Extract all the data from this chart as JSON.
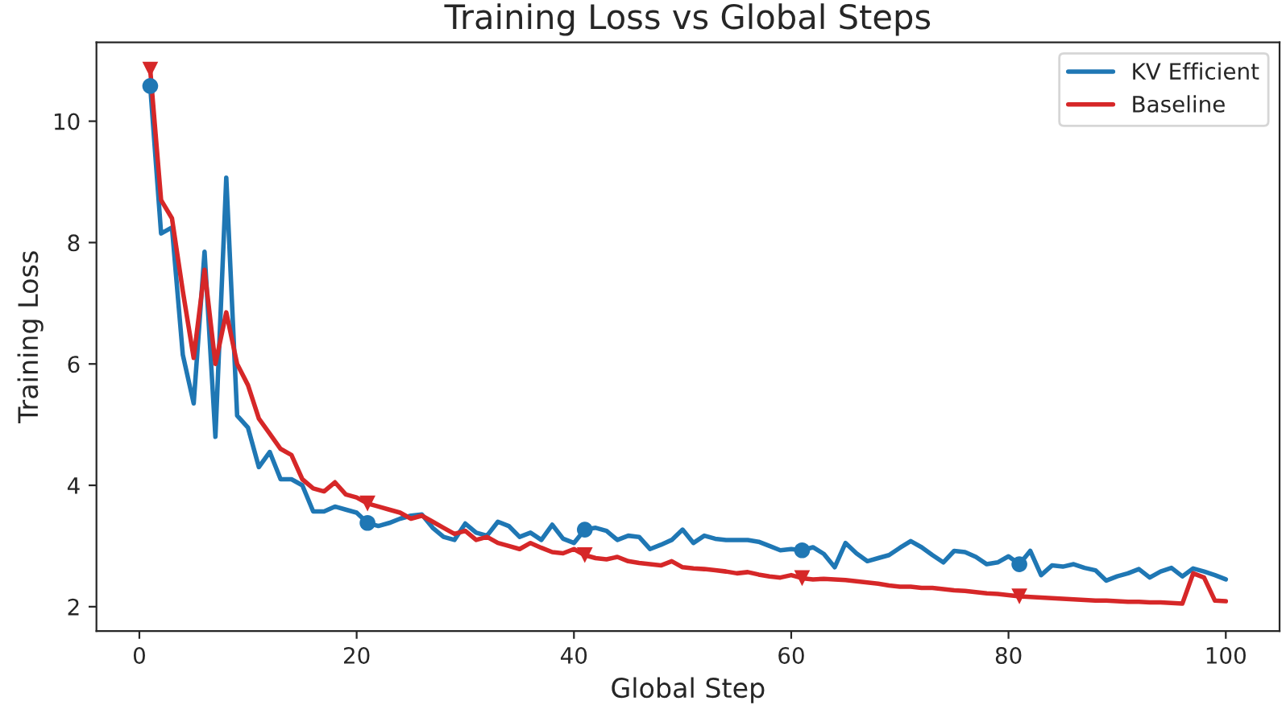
{
  "chart_data": {
    "type": "line",
    "title": "Training Loss vs Global Steps",
    "xlabel": "Global Step",
    "ylabel": "Training Loss",
    "x": [
      1,
      2,
      3,
      4,
      5,
      6,
      7,
      8,
      9,
      10,
      11,
      12,
      13,
      14,
      15,
      16,
      17,
      18,
      19,
      20,
      21,
      22,
      23,
      24,
      25,
      26,
      27,
      28,
      29,
      30,
      31,
      32,
      33,
      34,
      35,
      36,
      37,
      38,
      39,
      40,
      41,
      42,
      43,
      44,
      45,
      46,
      47,
      48,
      49,
      50,
      51,
      52,
      53,
      54,
      55,
      56,
      57,
      58,
      59,
      60,
      61,
      62,
      63,
      64,
      65,
      66,
      67,
      68,
      69,
      70,
      71,
      72,
      73,
      74,
      75,
      76,
      77,
      78,
      79,
      80,
      81,
      82,
      83,
      84,
      85,
      86,
      87,
      88,
      89,
      90,
      91,
      92,
      93,
      94,
      95,
      96,
      97,
      98,
      99,
      100
    ],
    "series": [
      {
        "name": "KV Efficient",
        "color": "#1f77b4",
        "values": [
          10.58,
          8.15,
          8.25,
          6.15,
          5.35,
          7.85,
          4.8,
          9.07,
          5.15,
          4.95,
          4.3,
          4.55,
          4.1,
          4.1,
          4.0,
          3.57,
          3.57,
          3.65,
          3.6,
          3.55,
          3.38,
          3.33,
          3.38,
          3.45,
          3.5,
          3.52,
          3.3,
          3.15,
          3.1,
          3.37,
          3.22,
          3.17,
          3.4,
          3.33,
          3.15,
          3.22,
          3.1,
          3.35,
          3.12,
          3.05,
          3.27,
          3.3,
          3.25,
          3.1,
          3.17,
          3.15,
          2.95,
          3.02,
          3.1,
          3.27,
          3.05,
          3.17,
          3.12,
          3.1,
          3.1,
          3.1,
          3.07,
          3.0,
          2.93,
          2.95,
          2.93,
          2.98,
          2.87,
          2.65,
          3.05,
          2.88,
          2.75,
          2.8,
          2.85,
          2.97,
          3.08,
          2.98,
          2.85,
          2.73,
          2.92,
          2.9,
          2.82,
          2.7,
          2.73,
          2.83,
          2.7,
          2.92,
          2.52,
          2.68,
          2.66,
          2.7,
          2.64,
          2.6,
          2.43,
          2.5,
          2.55,
          2.62,
          2.48,
          2.58,
          2.64,
          2.5,
          2.63,
          2.58,
          2.52,
          2.45
        ]
      },
      {
        "name": "Baseline",
        "color": "#d62728",
        "values": [
          10.85,
          8.7,
          8.4,
          7.2,
          6.1,
          7.55,
          6.0,
          6.85,
          6.0,
          5.65,
          5.1,
          4.85,
          4.6,
          4.5,
          4.1,
          3.95,
          3.9,
          4.05,
          3.85,
          3.8,
          3.7,
          3.65,
          3.6,
          3.55,
          3.45,
          3.5,
          3.4,
          3.3,
          3.2,
          3.25,
          3.1,
          3.15,
          3.05,
          3.0,
          2.95,
          3.05,
          2.97,
          2.9,
          2.88,
          2.95,
          2.85,
          2.8,
          2.78,
          2.82,
          2.75,
          2.72,
          2.7,
          2.68,
          2.75,
          2.65,
          2.63,
          2.62,
          2.6,
          2.58,
          2.55,
          2.57,
          2.53,
          2.5,
          2.48,
          2.52,
          2.47,
          2.45,
          2.46,
          2.45,
          2.44,
          2.42,
          2.4,
          2.38,
          2.35,
          2.33,
          2.33,
          2.31,
          2.31,
          2.29,
          2.27,
          2.26,
          2.24,
          2.22,
          2.21,
          2.19,
          2.17,
          2.16,
          2.15,
          2.14,
          2.13,
          2.12,
          2.11,
          2.1,
          2.1,
          2.09,
          2.08,
          2.08,
          2.07,
          2.07,
          2.06,
          2.05,
          2.55,
          2.48,
          2.1,
          2.09
        ]
      },
      {
        "type": "scatter",
        "color": "#1f77b4",
        "marker": "circle",
        "x": [
          1,
          21,
          41,
          61,
          81
        ],
        "values": [
          10.58,
          3.38,
          3.27,
          2.93,
          2.7
        ]
      },
      {
        "type": "scatter",
        "color": "#d62728",
        "marker": "triangle",
        "x": [
          1,
          21,
          41,
          61,
          81
        ],
        "values": [
          10.85,
          3.7,
          2.85,
          2.47,
          2.17
        ]
      }
    ],
    "xlim": [
      -3.95,
      104.95
    ],
    "xticks": [
      0,
      20,
      40,
      60,
      80,
      100
    ],
    "ylim": [
      1.6,
      11.3
    ],
    "yticks": [
      2,
      4,
      6,
      8,
      10
    ],
    "legend": "top right",
    "grid": false,
    "line_style": "solid"
  }
}
